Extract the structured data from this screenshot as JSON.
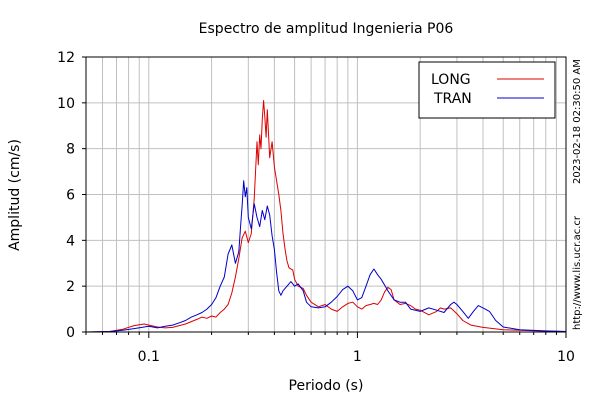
{
  "chart_data": {
    "type": "line",
    "title": "Espectro de amplitud Ingenieria P06",
    "xlabel": "Periodo (s)",
    "ylabel": "Amplitud (cm/s)",
    "x_scale": "log",
    "xlim": [
      0.05,
      10
    ],
    "ylim": [
      0,
      12
    ],
    "x_ticks": [
      0.1,
      1,
      10
    ],
    "x_tick_labels": [
      "0.1",
      "1",
      "10"
    ],
    "y_ticks": [
      0,
      2,
      4,
      6,
      8,
      10,
      12
    ],
    "y_tick_labels": [
      "0",
      "2",
      "4",
      "6",
      "8",
      "10",
      "12"
    ],
    "grid": true,
    "legend_position": "top-right",
    "side_text_timestamp": "2023-02-18 02:30:50 AM",
    "side_text_url": "http://www.lis.ucr.ac.cr",
    "series": [
      {
        "name": "LONG",
        "color": "#dd0000",
        "points": [
          [
            0.05,
            0.0
          ],
          [
            0.065,
            0.02
          ],
          [
            0.075,
            0.12
          ],
          [
            0.085,
            0.28
          ],
          [
            0.095,
            0.35
          ],
          [
            0.1,
            0.3
          ],
          [
            0.11,
            0.22
          ],
          [
            0.12,
            0.18
          ],
          [
            0.13,
            0.2
          ],
          [
            0.15,
            0.35
          ],
          [
            0.17,
            0.55
          ],
          [
            0.18,
            0.65
          ],
          [
            0.19,
            0.6
          ],
          [
            0.2,
            0.7
          ],
          [
            0.21,
            0.65
          ],
          [
            0.22,
            0.85
          ],
          [
            0.23,
            1.0
          ],
          [
            0.24,
            1.2
          ],
          [
            0.25,
            1.7
          ],
          [
            0.26,
            2.4
          ],
          [
            0.27,
            3.2
          ],
          [
            0.28,
            4.1
          ],
          [
            0.29,
            4.4
          ],
          [
            0.3,
            3.9
          ],
          [
            0.31,
            4.3
          ],
          [
            0.32,
            5.8
          ],
          [
            0.33,
            8.3
          ],
          [
            0.335,
            7.3
          ],
          [
            0.34,
            8.6
          ],
          [
            0.345,
            8.0
          ],
          [
            0.35,
            9.3
          ],
          [
            0.355,
            10.1
          ],
          [
            0.36,
            9.4
          ],
          [
            0.365,
            8.5
          ],
          [
            0.37,
            9.7
          ],
          [
            0.38,
            7.6
          ],
          [
            0.39,
            8.3
          ],
          [
            0.4,
            7.2
          ],
          [
            0.41,
            6.6
          ],
          [
            0.42,
            6.0
          ],
          [
            0.43,
            5.3
          ],
          [
            0.44,
            4.3
          ],
          [
            0.45,
            3.6
          ],
          [
            0.46,
            3.1
          ],
          [
            0.47,
            2.8
          ],
          [
            0.49,
            2.7
          ],
          [
            0.5,
            2.3
          ],
          [
            0.52,
            2.0
          ],
          [
            0.55,
            1.9
          ],
          [
            0.57,
            1.6
          ],
          [
            0.6,
            1.3
          ],
          [
            0.65,
            1.1
          ],
          [
            0.7,
            1.2
          ],
          [
            0.75,
            1.0
          ],
          [
            0.8,
            0.9
          ],
          [
            0.85,
            1.1
          ],
          [
            0.9,
            1.25
          ],
          [
            0.95,
            1.3
          ],
          [
            1.0,
            1.1
          ],
          [
            1.05,
            1.0
          ],
          [
            1.1,
            1.15
          ],
          [
            1.15,
            1.2
          ],
          [
            1.2,
            1.25
          ],
          [
            1.25,
            1.2
          ],
          [
            1.3,
            1.4
          ],
          [
            1.35,
            1.75
          ],
          [
            1.4,
            1.95
          ],
          [
            1.45,
            1.85
          ],
          [
            1.5,
            1.4
          ],
          [
            1.6,
            1.2
          ],
          [
            1.7,
            1.25
          ],
          [
            1.8,
            1.15
          ],
          [
            1.9,
            1.0
          ],
          [
            2.0,
            0.95
          ],
          [
            2.2,
            0.75
          ],
          [
            2.4,
            0.9
          ],
          [
            2.5,
            1.05
          ],
          [
            2.6,
            1.0
          ],
          [
            2.8,
            1.05
          ],
          [
            3.0,
            0.8
          ],
          [
            3.2,
            0.5
          ],
          [
            3.5,
            0.3
          ],
          [
            4.0,
            0.2
          ],
          [
            5.0,
            0.1
          ],
          [
            6.0,
            0.08
          ],
          [
            8.0,
            0.04
          ],
          [
            10.0,
            0.02
          ]
        ]
      },
      {
        "name": "TRAN",
        "color": "#0000cc",
        "points": [
          [
            0.05,
            0.0
          ],
          [
            0.065,
            0.02
          ],
          [
            0.075,
            0.08
          ],
          [
            0.085,
            0.15
          ],
          [
            0.095,
            0.22
          ],
          [
            0.1,
            0.25
          ],
          [
            0.11,
            0.18
          ],
          [
            0.12,
            0.25
          ],
          [
            0.13,
            0.3
          ],
          [
            0.14,
            0.4
          ],
          [
            0.15,
            0.5
          ],
          [
            0.16,
            0.65
          ],
          [
            0.17,
            0.75
          ],
          [
            0.18,
            0.85
          ],
          [
            0.19,
            1.0
          ],
          [
            0.2,
            1.2
          ],
          [
            0.21,
            1.5
          ],
          [
            0.22,
            2.0
          ],
          [
            0.23,
            2.4
          ],
          [
            0.24,
            3.4
          ],
          [
            0.245,
            3.6
          ],
          [
            0.25,
            3.8
          ],
          [
            0.26,
            3.0
          ],
          [
            0.27,
            3.5
          ],
          [
            0.275,
            4.5
          ],
          [
            0.28,
            5.5
          ],
          [
            0.285,
            6.6
          ],
          [
            0.29,
            5.9
          ],
          [
            0.295,
            6.3
          ],
          [
            0.3,
            5.0
          ],
          [
            0.31,
            4.5
          ],
          [
            0.32,
            5.6
          ],
          [
            0.33,
            5.0
          ],
          [
            0.34,
            4.6
          ],
          [
            0.35,
            5.3
          ],
          [
            0.36,
            4.9
          ],
          [
            0.37,
            5.5
          ],
          [
            0.38,
            5.1
          ],
          [
            0.39,
            4.2
          ],
          [
            0.4,
            3.6
          ],
          [
            0.41,
            2.6
          ],
          [
            0.42,
            1.8
          ],
          [
            0.43,
            1.6
          ],
          [
            0.44,
            1.8
          ],
          [
            0.46,
            2.0
          ],
          [
            0.48,
            2.2
          ],
          [
            0.5,
            2.0
          ],
          [
            0.52,
            2.1
          ],
          [
            0.55,
            1.8
          ],
          [
            0.57,
            1.3
          ],
          [
            0.6,
            1.1
          ],
          [
            0.65,
            1.05
          ],
          [
            0.7,
            1.1
          ],
          [
            0.75,
            1.3
          ],
          [
            0.8,
            1.55
          ],
          [
            0.85,
            1.85
          ],
          [
            0.9,
            2.0
          ],
          [
            0.95,
            1.8
          ],
          [
            1.0,
            1.4
          ],
          [
            1.05,
            1.5
          ],
          [
            1.1,
            2.0
          ],
          [
            1.15,
            2.5
          ],
          [
            1.2,
            2.75
          ],
          [
            1.25,
            2.5
          ],
          [
            1.3,
            2.3
          ],
          [
            1.4,
            1.8
          ],
          [
            1.5,
            1.4
          ],
          [
            1.6,
            1.3
          ],
          [
            1.7,
            1.3
          ],
          [
            1.8,
            1.0
          ],
          [
            2.0,
            0.9
          ],
          [
            2.2,
            1.05
          ],
          [
            2.4,
            0.95
          ],
          [
            2.6,
            0.85
          ],
          [
            2.8,
            1.2
          ],
          [
            2.9,
            1.3
          ],
          [
            3.0,
            1.2
          ],
          [
            3.2,
            0.9
          ],
          [
            3.4,
            0.6
          ],
          [
            3.6,
            0.9
          ],
          [
            3.8,
            1.15
          ],
          [
            4.0,
            1.05
          ],
          [
            4.3,
            0.9
          ],
          [
            4.6,
            0.5
          ],
          [
            5.0,
            0.22
          ],
          [
            6.0,
            0.1
          ],
          [
            8.0,
            0.05
          ],
          [
            10.0,
            0.02
          ]
        ]
      }
    ]
  }
}
